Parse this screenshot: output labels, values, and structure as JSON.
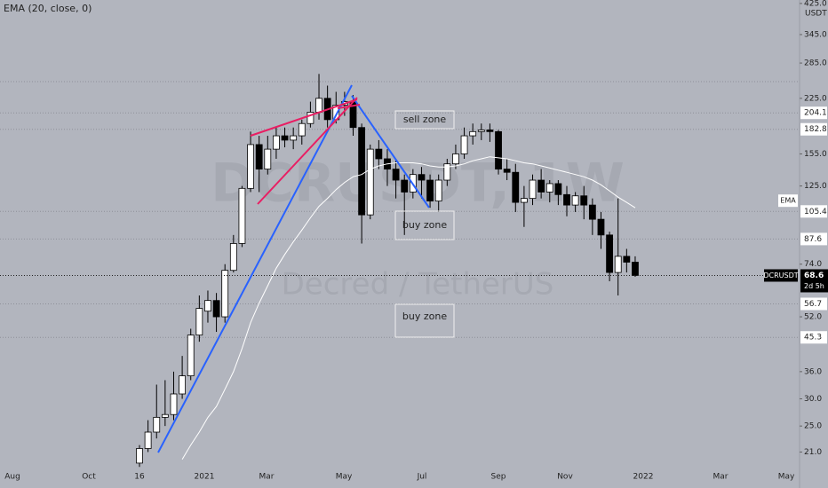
{
  "chart_data": {
    "type": "candlestick",
    "title": "EMA (20, close, 0)",
    "watermark": [
      "DCRUSDT, 1W",
      "Decred / TetherUS"
    ],
    "currency": "USDT",
    "symbol_label": "DCRUSDT",
    "countdown": "2d 5h",
    "log_scale": true,
    "up_color": "#ffffff",
    "down_color": "#000000",
    "ylim": [
      16.5,
      435
    ],
    "yticks": [
      {
        "value": 425,
        "label": "425.0"
      },
      {
        "value": 345,
        "label": "345.0"
      },
      {
        "value": 285,
        "label": "285.0"
      },
      {
        "value": 225,
        "label": "225.0"
      },
      {
        "value": 155,
        "label": "155.0"
      },
      {
        "value": 125,
        "label": "125.0"
      },
      {
        "value": 74,
        "label": "74.0"
      },
      {
        "value": 52,
        "label": "52.0"
      },
      {
        "value": 36,
        "label": "36.0"
      },
      {
        "value": 30,
        "label": "30.0"
      },
      {
        "value": 25,
        "label": "25.0"
      },
      {
        "value": 21,
        "label": "21.0"
      }
    ],
    "xticks": [
      "Aug",
      "Oct",
      "16",
      "2021",
      "Mar",
      "May",
      "Jul",
      "Sep",
      "Nov",
      "2022",
      "Mar",
      "May"
    ],
    "open": [
      19.5,
      21.5,
      24,
      26.5,
      27,
      31,
      35,
      46,
      54,
      58,
      52,
      71,
      85,
      123,
      165,
      140,
      160,
      175,
      170,
      175,
      190,
      205,
      225,
      195,
      215,
      220,
      185,
      103,
      160,
      150,
      140,
      130,
      120,
      135,
      130,
      113,
      130,
      145,
      155,
      175,
      180,
      182,
      180,
      140,
      137,
      112,
      115,
      130,
      120,
      127,
      118,
      110,
      117,
      110,
      100,
      90,
      70,
      78,
      75
    ],
    "high": [
      22,
      26,
      33,
      34,
      36,
      40,
      48,
      60,
      62,
      61,
      74,
      90,
      125,
      180,
      175,
      175,
      185,
      185,
      185,
      195,
      220,
      265,
      245,
      235,
      235,
      230,
      190,
      165,
      170,
      160,
      150,
      135,
      140,
      142,
      135,
      135,
      150,
      165,
      185,
      190,
      190,
      190,
      182,
      150,
      145,
      125,
      135,
      140,
      130,
      130,
      125,
      120,
      125,
      115,
      105,
      92,
      115,
      82,
      78
    ],
    "low": [
      19,
      21,
      23,
      25,
      26,
      30,
      34,
      44,
      50,
      47,
      50,
      70,
      83,
      120,
      120,
      135,
      150,
      162,
      160,
      165,
      185,
      195,
      185,
      190,
      200,
      175,
      85,
      100,
      140,
      125,
      115,
      90,
      115,
      115,
      108,
      105,
      125,
      140,
      150,
      165,
      170,
      168,
      135,
      130,
      105,
      95,
      110,
      115,
      112,
      110,
      102,
      105,
      100,
      90,
      82,
      66,
      60,
      70,
      68
    ],
    "close": [
      21.5,
      24,
      26.5,
      27,
      31,
      35,
      46,
      55,
      58,
      52,
      71,
      85,
      123,
      165,
      140,
      160,
      175,
      170,
      175,
      190,
      205,
      225,
      195,
      215,
      220,
      185,
      103,
      160,
      150,
      140,
      130,
      120,
      135,
      130,
      113,
      130,
      145,
      155,
      175,
      180,
      182,
      180,
      140,
      137,
      112,
      115,
      130,
      120,
      127,
      118,
      110,
      117,
      110,
      100,
      90,
      70,
      78,
      75,
      68.6
    ],
    "series": [
      {
        "name": "EMA",
        "color": "#ffffff",
        "values": [
          null,
          null,
          null,
          null,
          null,
          20,
          22,
          24,
          26.5,
          28.5,
          32,
          36,
          42,
          50,
          57,
          64,
          72,
          79,
          86,
          93,
          101,
          109,
          115,
          122,
          128,
          133,
          135,
          140,
          143,
          145,
          146,
          146,
          146,
          145,
          143,
          142,
          142,
          143,
          145,
          148,
          150,
          152,
          151,
          150,
          148,
          146,
          145,
          143,
          141,
          139,
          137,
          135,
          133,
          130,
          126,
          121,
          116,
          112,
          108
        ]
      }
    ],
    "levels": [
      204.1,
      182.8,
      105.4,
      87.6,
      56.7,
      45.3
    ],
    "current_price": 68.6,
    "annotations": [
      "sell zone",
      "buy zone",
      "buy zone"
    ]
  }
}
